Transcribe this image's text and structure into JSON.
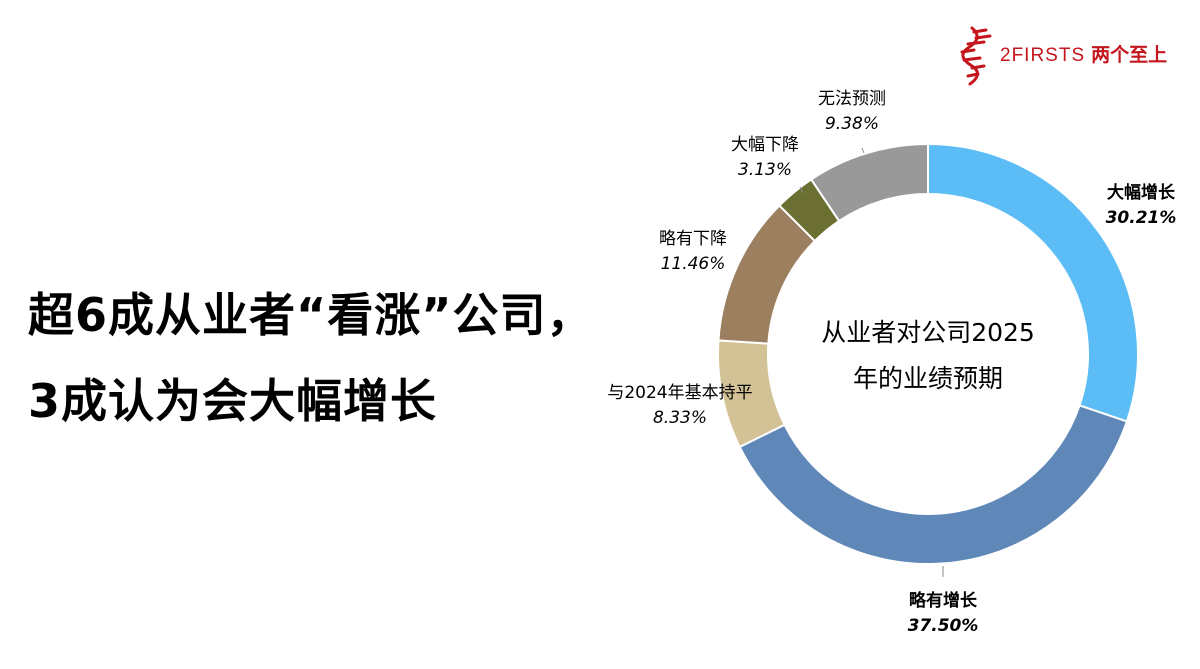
{
  "headline": {
    "line1": "超6成从业者“看涨”公司，",
    "line2": "3成认为会大幅增长"
  },
  "logo": {
    "text": "2FIRSTS",
    "cn": "两个至上",
    "color": "#c4161c"
  },
  "chart_data": {
    "type": "donut",
    "center_label": [
      "从业者对公司2025",
      "年的业绩预期"
    ],
    "slices": [
      {
        "name": "大幅增长",
        "value": 30.21,
        "label": "30.21%",
        "color": "#5bbcf6"
      },
      {
        "name": "略有增长",
        "value": 37.5,
        "label": "37.50%",
        "color": "#5f88b9"
      },
      {
        "name": "与2024年基本持平",
        "value": 8.33,
        "label": "8.33%",
        "color": "#d3c296"
      },
      {
        "name": "略有下降",
        "value": 11.46,
        "label": "11.46%",
        "color": "#9b7f5e"
      },
      {
        "name": "大幅下降",
        "value": 3.13,
        "label": "3.13%",
        "color": "#6b6f32"
      },
      {
        "name": "无法预测",
        "value": 9.38,
        "label": "9.38%",
        "color": "#999999"
      }
    ]
  }
}
